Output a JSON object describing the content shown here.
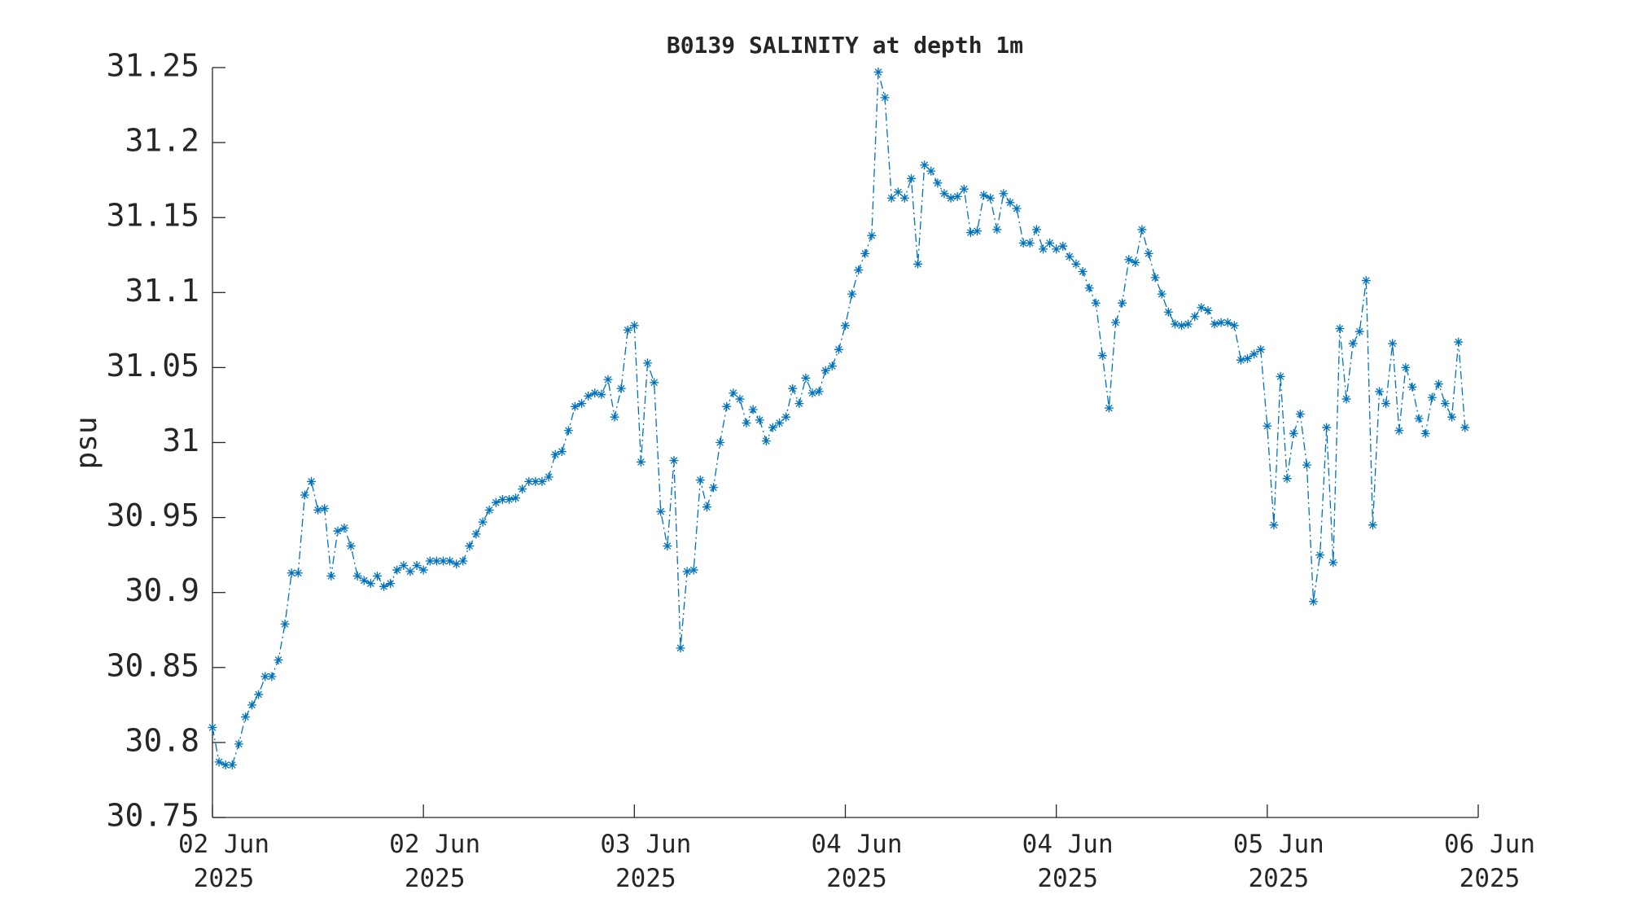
{
  "chart_data": {
    "type": "line",
    "title": "B0139 SALINITY at depth 1m",
    "ylabel": "psu",
    "color": "#0072bd",
    "x": [
      0,
      0.5,
      1,
      1.5,
      2,
      2.5,
      3,
      3.5,
      4,
      4.5,
      5,
      5.5,
      6,
      6.5,
      7,
      7.5,
      8,
      8.5,
      9,
      9.5,
      10,
      10.5,
      11,
      11.5,
      12,
      12.5,
      13,
      13.5,
      14,
      14.5,
      15,
      15.5,
      16,
      16.5,
      17,
      17.5,
      18,
      18.5,
      19,
      19.5,
      20,
      20.5,
      21,
      21.5,
      22,
      22.5,
      23,
      23.5,
      24,
      24.5,
      25,
      25.5,
      26,
      26.5,
      27,
      27.5,
      28,
      28.5,
      29,
      29.5,
      30,
      30.5,
      31,
      31.5,
      32,
      32.5,
      33,
      33.5,
      34,
      34.5,
      35,
      35.5,
      36,
      36.5,
      37,
      37.5,
      38,
      38.5,
      39,
      39.5,
      40,
      40.5,
      41,
      41.5,
      42,
      42.5,
      43,
      43.5,
      44,
      44.5,
      45,
      45.5,
      46,
      46.5,
      47,
      47.5,
      48,
      48.5,
      49,
      49.5,
      50,
      50.5,
      51,
      51.5,
      52,
      52.5,
      53,
      53.5,
      54,
      54.5,
      55,
      55.5,
      56,
      56.5,
      57,
      57.5,
      58,
      58.5,
      59,
      59.5,
      60,
      60.5,
      61,
      61.5,
      62,
      62.5,
      63,
      63.5,
      64,
      64.5,
      65,
      65.5,
      66,
      66.5,
      67,
      67.5,
      68,
      68.5,
      69,
      69.5,
      70,
      70.5,
      71,
      71.5,
      72,
      72.5,
      73,
      73.5,
      74,
      74.5,
      75,
      75.5,
      76,
      76.5,
      77,
      77.5,
      78,
      78.5,
      79,
      79.5,
      80,
      80.5,
      81,
      81.5,
      82,
      82.5,
      83,
      83.5,
      84,
      84.5,
      85,
      85.5,
      86,
      86.5,
      87,
      87.5,
      88,
      88.5,
      89,
      89.5,
      90,
      90.5,
      91,
      91.5,
      92,
      92.5,
      93,
      93.5,
      94,
      94.5,
      95
    ],
    "values": [
      30.81,
      30.787,
      30.785,
      30.785,
      30.799,
      30.817,
      30.825,
      30.832,
      30.844,
      30.844,
      30.855,
      30.879,
      30.913,
      30.913,
      30.965,
      30.974,
      30.955,
      30.956,
      30.911,
      30.941,
      30.943,
      30.931,
      30.911,
      30.908,
      30.906,
      30.911,
      30.904,
      30.906,
      30.915,
      30.918,
      30.914,
      30.918,
      30.915,
      30.921,
      30.921,
      30.921,
      30.921,
      30.919,
      30.921,
      30.931,
      30.939,
      30.947,
      30.955,
      30.96,
      30.962,
      30.962,
      30.963,
      30.969,
      30.974,
      30.974,
      30.974,
      30.977,
      30.992,
      30.994,
      31.008,
      31.024,
      31.026,
      31.031,
      31.033,
      31.032,
      31.042,
      31.017,
      31.036,
      31.075,
      31.078,
      30.987,
      31.053,
      31.04,
      30.954,
      30.931,
      30.988,
      30.863,
      30.914,
      30.915,
      30.975,
      30.957,
      30.97,
      31.0,
      31.024,
      31.033,
      31.029,
      31.013,
      31.022,
      31.015,
      31.001,
      31.01,
      31.013,
      31.017,
      31.036,
      31.026,
      31.043,
      31.033,
      31.034,
      31.048,
      31.051,
      31.062,
      31.078,
      31.099,
      31.115,
      31.126,
      31.138,
      31.247,
      31.23,
      31.163,
      31.167,
      31.163,
      31.176,
      31.119,
      31.185,
      31.181,
      31.173,
      31.166,
      31.163,
      31.164,
      31.169,
      31.14,
      31.141,
      31.165,
      31.163,
      31.142,
      31.166,
      31.16,
      31.156,
      31.133,
      31.133,
      31.142,
      31.129,
      31.133,
      31.129,
      31.131,
      31.124,
      31.119,
      31.114,
      31.103,
      31.093,
      31.058,
      31.023,
      31.08,
      31.093,
      31.122,
      31.12,
      31.142,
      31.126,
      31.11,
      31.099,
      31.087,
      31.079,
      31.078,
      31.079,
      31.084,
      31.09,
      31.088,
      31.079,
      31.08,
      31.08,
      31.078,
      31.055,
      31.056,
      31.059,
      31.062,
      31.011,
      30.945,
      31.044,
      30.976,
      31.006,
      31.019,
      30.985,
      30.894,
      30.925,
      31.01,
      30.92,
      31.076,
      31.029,
      31.066,
      31.074,
      31.108,
      30.945,
      31.034,
      31.026,
      31.066,
      31.008,
      31.05,
      31.037,
      31.016,
      31.006,
      31.03,
      31.039,
      31.026,
      31.017,
      31.067,
      31.01
    ],
    "xlim": [
      0,
      96
    ],
    "xticks": [
      {
        "value": 0,
        "label": "02 Jun\n2025"
      },
      {
        "value": 16,
        "label": "02 Jun\n2025"
      },
      {
        "value": 32,
        "label": "03 Jun\n2025"
      },
      {
        "value": 48,
        "label": "04 Jun\n2025"
      },
      {
        "value": 64,
        "label": "04 Jun\n2025"
      },
      {
        "value": 80,
        "label": "05 Jun\n2025"
      },
      {
        "value": 96,
        "label": "06 Jun\n2025"
      }
    ],
    "ylim": [
      30.75,
      31.25
    ],
    "yticks": [
      30.75,
      30.8,
      30.85,
      30.9,
      30.95,
      31,
      31.05,
      31.1,
      31.15,
      31.2,
      31.25
    ]
  }
}
